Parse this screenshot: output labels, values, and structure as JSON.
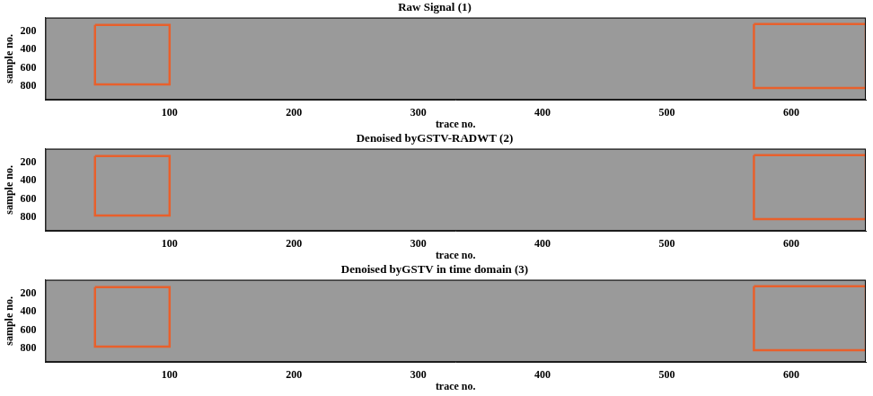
{
  "chart_data": [
    {
      "type": "image",
      "title": "Raw Signal (1)",
      "x_label": "trace no.",
      "y_label": "sample no.",
      "xlim": [
        0,
        660
      ],
      "xticks": [
        100,
        200,
        300,
        400,
        500,
        600
      ],
      "ylim": [
        950,
        50
      ],
      "yticks": [
        200,
        400,
        600,
        800
      ],
      "grid": false,
      "color": "#e8602c",
      "boxes": [
        {
          "x": [
            40,
            100
          ],
          "y": [
            130,
            780
          ]
        },
        {
          "x": [
            570,
            660
          ],
          "y": [
            120,
            820
          ]
        }
      ]
    },
    {
      "type": "image",
      "title": "Denoised byGSTV-RADWT (2)",
      "x_label": "trace no.",
      "y_label": "sample no.",
      "xlim": [
        0,
        660
      ],
      "xticks": [
        100,
        200,
        300,
        400,
        500,
        600
      ],
      "ylim": [
        950,
        50
      ],
      "yticks": [
        200,
        400,
        600,
        800
      ],
      "grid": false,
      "color": "#e8602c",
      "boxes": [
        {
          "x": [
            40,
            100
          ],
          "y": [
            130,
            780
          ]
        },
        {
          "x": [
            570,
            660
          ],
          "y": [
            120,
            820
          ]
        }
      ]
    },
    {
      "type": "image",
      "title": "Denoised byGSTV in time domain (3)",
      "x_label": "trace no.",
      "y_label": "sample no.",
      "xlim": [
        0,
        660
      ],
      "xticks": [
        100,
        200,
        300,
        400,
        500,
        600
      ],
      "ylim": [
        950,
        50
      ],
      "yticks": [
        200,
        400,
        600,
        800
      ],
      "grid": false,
      "color": "#e8602c",
      "boxes": [
        {
          "x": [
            40,
            100
          ],
          "y": [
            130,
            780
          ]
        },
        {
          "x": [
            570,
            660
          ],
          "y": [
            120,
            820
          ]
        }
      ]
    }
  ]
}
